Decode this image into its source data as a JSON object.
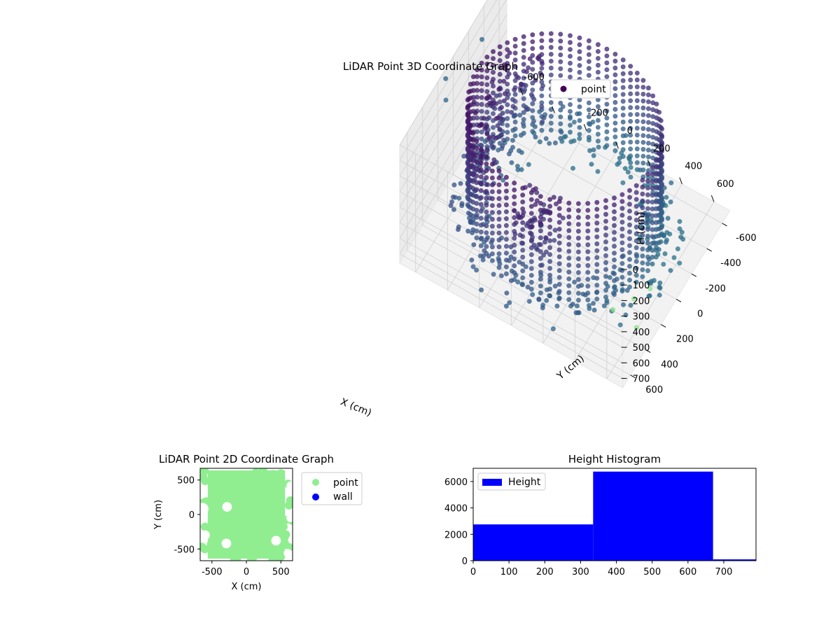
{
  "chart_data": [
    {
      "type": "scatter",
      "projection": "3d",
      "title": "LiDAR Point 3D Coordinate Graph",
      "xlabel": "X (cm)",
      "ylabel": "Y (cm)",
      "zlabel": "H (cm)",
      "xlim": [
        -700,
        700
      ],
      "ylim": [
        -700,
        700
      ],
      "zlim": [
        760,
        0
      ],
      "x_ticks": [
        -600,
        -400,
        -200,
        0,
        200,
        400,
        600
      ],
      "y_ticks": [
        -600,
        -400,
        -200,
        0,
        200,
        400,
        600
      ],
      "z_ticks": [
        0,
        100,
        200,
        300,
        400,
        500,
        600,
        700
      ],
      "z_axis_inverted": true,
      "grid": true,
      "legend": {
        "position": "top-right",
        "entries": [
          "point"
        ]
      },
      "colormap": "viridis",
      "series": [
        {
          "name": "point",
          "color": "#440154",
          "wall": {
            "radius_cm": 550,
            "height_range_cm": [
              0,
              620
            ],
            "angular_steps": 64,
            "height_steps": 14
          },
          "notes_points": [
            {
              "x": -690,
              "y": 120,
              "h": 40
            },
            {
              "x": -650,
              "y": 200,
              "h": 90
            },
            {
              "x": -640,
              "y": -250,
              "h": 60
            },
            {
              "x": 650,
              "y": 450,
              "h": 420
            },
            {
              "x": 680,
              "y": 300,
              "h": 460
            },
            {
              "x": 700,
              "y": 520,
              "h": 520
            },
            {
              "x": 600,
              "y": 620,
              "h": 380
            }
          ]
        }
      ]
    },
    {
      "type": "scatter",
      "title": "LiDAR Point 2D Coordinate Graph",
      "xlabel": "X (cm)",
      "ylabel": "Y (cm)",
      "xlim": [
        -670,
        670
      ],
      "ylim": [
        -670,
        670
      ],
      "x_ticks": [
        -500,
        0,
        500
      ],
      "y_ticks": [
        -500,
        0,
        500
      ],
      "legend": {
        "position": "outside-right",
        "entries": [
          "point",
          "wall"
        ]
      },
      "series": [
        {
          "name": "point",
          "color": "#90ee90"
        },
        {
          "name": "wall",
          "color": "#0000ff"
        }
      ],
      "blank_regions": [
        {
          "x": -640,
          "y": 80,
          "r": 90
        },
        {
          "x": -600,
          "y": -300,
          "r": 70
        },
        {
          "x": -280,
          "y": 110,
          "r": 70
        },
        {
          "x": -290,
          "y": -420,
          "r": 70
        },
        {
          "x": 430,
          "y": -380,
          "r": 70
        },
        {
          "x": 640,
          "y": -50,
          "r": 60
        },
        {
          "x": 640,
          "y": 420,
          "r": 60
        },
        {
          "x": 600,
          "y": -560,
          "r": 60
        }
      ]
    },
    {
      "type": "bar",
      "title": "Height Histogram",
      "xlim": [
        0,
        790
      ],
      "ylim": [
        0,
        7000
      ],
      "x_ticks": [
        0,
        100,
        200,
        300,
        400,
        500,
        600,
        700
      ],
      "y_ticks": [
        0,
        2000,
        4000,
        6000
      ],
      "legend": {
        "position": "top-left",
        "entries": [
          "Height"
        ]
      },
      "series": [
        {
          "name": "Height",
          "color": "#0000ff",
          "bins": [
            {
              "start": 0,
              "end": 335,
              "count": 2750
            },
            {
              "start": 335,
              "end": 670,
              "count": 6750
            },
            {
              "start": 670,
              "end": 790,
              "count": 100
            }
          ]
        }
      ]
    }
  ]
}
